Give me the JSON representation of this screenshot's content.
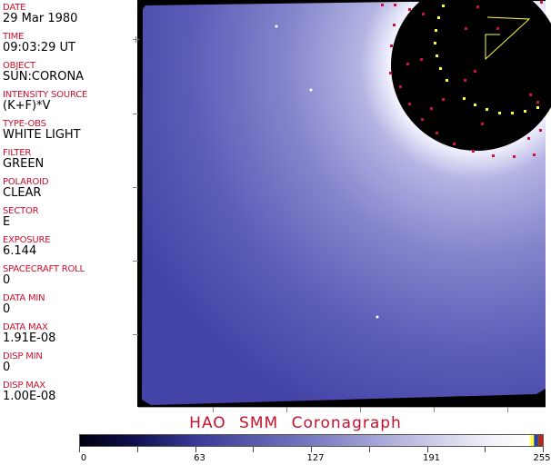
{
  "fields": [
    {
      "label": "DATE",
      "value": "29 Mar 1980"
    },
    {
      "label": "TIME",
      "value": "09:03:29 UT"
    },
    {
      "label": "OBJECT",
      "value": "SUN:CORONA"
    },
    {
      "label": "INTENSITY SOURCE",
      "value": "(K+F)*V"
    },
    {
      "label": "TYPE-OBS",
      "value": "WHITE LIGHT"
    },
    {
      "label": "FILTER",
      "value": "GREEN"
    },
    {
      "label": "POLAROID",
      "value": "CLEAR"
    },
    {
      "label": "SECTOR",
      "value": "E"
    },
    {
      "label": "EXPOSURE",
      "value": "6.144"
    },
    {
      "label": "SPACECRAFT ROLL",
      "value": "0"
    },
    {
      "label": "DATA MIN",
      "value": "0"
    },
    {
      "label": "DATA MAX",
      "value": "1.91E-08"
    },
    {
      "label": "DISP MIN",
      "value": "0"
    },
    {
      "label": "DISP MAX",
      "value": "1.00E-08"
    }
  ],
  "title": "HAO  SMM Coronagraph",
  "colorbar": {
    "ticks": [
      "0",
      "63",
      "127",
      "191",
      "255"
    ],
    "min": 0,
    "max": 255
  },
  "colors": {
    "label": "#c8102e",
    "corona": "#5a5ab8",
    "marker_red": "#d0103a",
    "marker_yellow": "#ffff30"
  }
}
